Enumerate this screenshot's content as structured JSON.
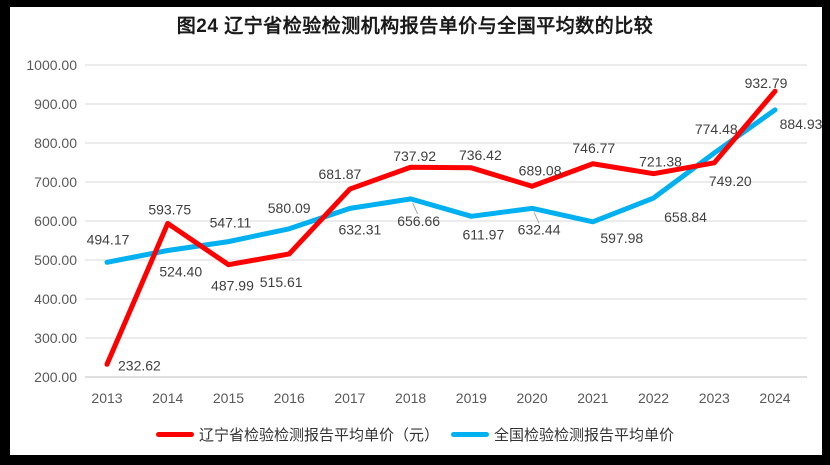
{
  "chart_data": {
    "type": "line",
    "title": "图24 辽宁省检验检测机构报告单价与全国平均数的比较",
    "categories": [
      "2013",
      "2014",
      "2015",
      "2016",
      "2017",
      "2018",
      "2019",
      "2020",
      "2021",
      "2022",
      "2023",
      "2024"
    ],
    "series": [
      {
        "name": "辽宁省检验检测报告平均单价（元）",
        "color": "#FF0000",
        "values": [
          232.62,
          593.75,
          487.99,
          515.61,
          681.87,
          737.92,
          736.42,
          689.08,
          746.77,
          721.38,
          749.2,
          932.79
        ]
      },
      {
        "name": "全国检验检测报告平均单价",
        "color": "#00B0F0",
        "values": [
          494.17,
          524.4,
          547.11,
          580.09,
          632.31,
          656.66,
          611.97,
          632.44,
          597.98,
          658.84,
          774.48,
          884.93
        ]
      }
    ],
    "xlabel": "",
    "ylabel": "",
    "ylim": [
      200,
      1000
    ],
    "ytick_step": 100,
    "ytick_labels": [
      "200.00",
      "300.00",
      "400.00",
      "500.00",
      "600.00",
      "700.00",
      "800.00",
      "900.00",
      "1000.00"
    ],
    "grid": true,
    "legend_position": "bottom",
    "value_label_decimals": 2
  },
  "colors": {
    "series_liaoning": "#FF0000",
    "series_national": "#00B0F0",
    "gridline": "#D9D9D9",
    "axis_line": "#BFBFBF",
    "leader_line": "#A6A6A6",
    "axis_text": "#595959",
    "data_label_text": "#404040",
    "title_text": "#1A1A1A",
    "frame": "#000000",
    "background": "#FFFFFF"
  }
}
